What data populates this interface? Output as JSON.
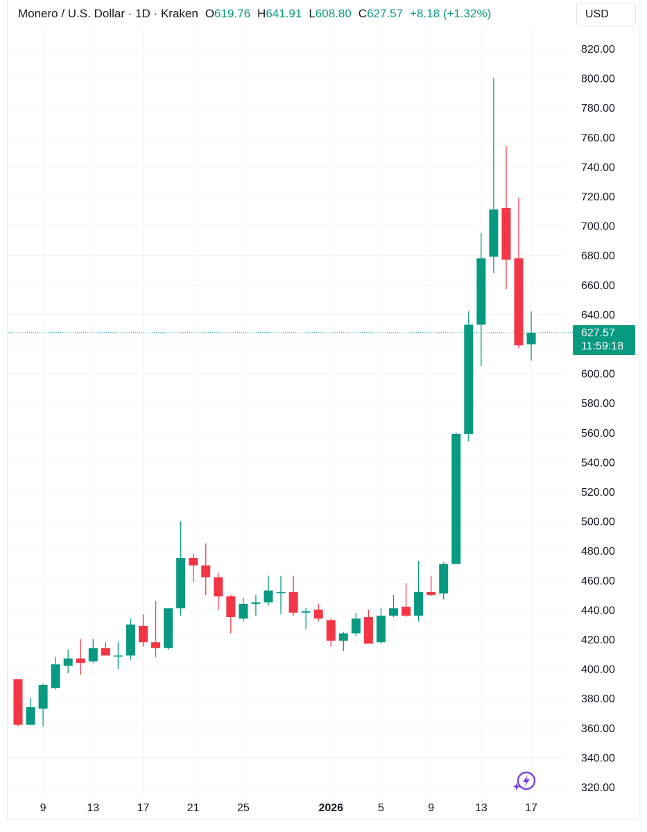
{
  "header": {
    "symbol": "Monero / U.S. Dollar · 1D · Kraken",
    "open_label": "O",
    "open_value": "619.76",
    "high_label": "H",
    "high_value": "641.91",
    "low_label": "L",
    "low_value": "608.80",
    "close_label": "C",
    "close_value": "627.57",
    "change": "+8.18 (+1.32%)"
  },
  "currency_button": "USD",
  "price_tag": {
    "price": "627.57",
    "countdown": "11:59:18"
  },
  "colors": {
    "up": "#089981",
    "down": "#F23645",
    "grid": "#F0F3FA",
    "accent": "#7B3FE4"
  },
  "icons": {
    "lightning": "lightning-sparkle-icon"
  },
  "chart_data": {
    "type": "candlestick",
    "y_ticks": [
      "820.00",
      "800.00",
      "780.00",
      "760.00",
      "740.00",
      "720.00",
      "700.00",
      "680.00",
      "660.00",
      "640.00",
      "620.00",
      "600.00",
      "580.00",
      "560.00",
      "540.00",
      "520.00",
      "500.00",
      "480.00",
      "460.00",
      "440.00",
      "420.00",
      "400.00",
      "380.00",
      "360.00",
      "340.00",
      "320.00"
    ],
    "ylim": [
      320,
      820
    ],
    "x_ticks": [
      {
        "label": "9",
        "index": 2
      },
      {
        "label": "13",
        "index": 6
      },
      {
        "label": "17",
        "index": 10
      },
      {
        "label": "21",
        "index": 14
      },
      {
        "label": "25",
        "index": 18
      },
      {
        "label": "2026",
        "index": 25
      },
      {
        "label": "5",
        "index": 29
      },
      {
        "label": "9",
        "index": 33
      },
      {
        "label": "13",
        "index": 37
      },
      {
        "label": "17",
        "index": 41
      }
    ],
    "candles": [
      {
        "o": 393,
        "h": 393,
        "l": 361,
        "c": 362
      },
      {
        "o": 362,
        "h": 380,
        "l": 362,
        "c": 374
      },
      {
        "o": 373,
        "h": 390,
        "l": 361,
        "c": 389
      },
      {
        "o": 387,
        "h": 408,
        "l": 386,
        "c": 403
      },
      {
        "o": 402,
        "h": 413,
        "l": 397,
        "c": 407
      },
      {
        "o": 407,
        "h": 420,
        "l": 396,
        "c": 404
      },
      {
        "o": 405,
        "h": 420,
        "l": 404,
        "c": 414
      },
      {
        "o": 414,
        "h": 418,
        "l": 409,
        "c": 409
      },
      {
        "o": 409,
        "h": 418,
        "l": 400,
        "c": 409
      },
      {
        "o": 409,
        "h": 434,
        "l": 406,
        "c": 430
      },
      {
        "o": 429,
        "h": 437,
        "l": 415,
        "c": 418
      },
      {
        "o": 418,
        "h": 446,
        "l": 408,
        "c": 414
      },
      {
        "o": 414,
        "h": 441,
        "l": 413,
        "c": 441
      },
      {
        "o": 441,
        "h": 500,
        "l": 436,
        "c": 475
      },
      {
        "o": 475,
        "h": 478,
        "l": 459,
        "c": 470
      },
      {
        "o": 470,
        "h": 485,
        "l": 450,
        "c": 462
      },
      {
        "o": 462,
        "h": 465,
        "l": 440,
        "c": 449
      },
      {
        "o": 449,
        "h": 450,
        "l": 424,
        "c": 435
      },
      {
        "o": 434,
        "h": 448,
        "l": 432,
        "c": 444
      },
      {
        "o": 444,
        "h": 450,
        "l": 436,
        "c": 445
      },
      {
        "o": 445,
        "h": 463,
        "l": 443,
        "c": 453
      },
      {
        "o": 452,
        "h": 463,
        "l": 437,
        "c": 452
      },
      {
        "o": 452,
        "h": 463,
        "l": 436,
        "c": 438
      },
      {
        "o": 438,
        "h": 441,
        "l": 427,
        "c": 439
      },
      {
        "o": 440,
        "h": 444,
        "l": 432,
        "c": 434
      },
      {
        "o": 433,
        "h": 434,
        "l": 415,
        "c": 419
      },
      {
        "o": 419,
        "h": 425,
        "l": 412,
        "c": 424
      },
      {
        "o": 424,
        "h": 438,
        "l": 422,
        "c": 434
      },
      {
        "o": 435,
        "h": 440,
        "l": 417,
        "c": 417
      },
      {
        "o": 418,
        "h": 441,
        "l": 417,
        "c": 436
      },
      {
        "o": 436,
        "h": 450,
        "l": 435,
        "c": 441
      },
      {
        "o": 442,
        "h": 458,
        "l": 435,
        "c": 436
      },
      {
        "o": 436,
        "h": 473,
        "l": 432,
        "c": 452
      },
      {
        "o": 452,
        "h": 463,
        "l": 449,
        "c": 450
      },
      {
        "o": 451,
        "h": 472,
        "l": 447,
        "c": 471
      },
      {
        "o": 471,
        "h": 560,
        "l": 471,
        "c": 559
      },
      {
        "o": 559,
        "h": 642,
        "l": 554,
        "c": 633
      },
      {
        "o": 633,
        "h": 695,
        "l": 605,
        "c": 678
      },
      {
        "o": 679,
        "h": 800,
        "l": 668,
        "c": 711
      },
      {
        "o": 712,
        "h": 754,
        "l": 657,
        "c": 677
      },
      {
        "o": 678,
        "h": 719,
        "l": 617,
        "c": 619
      },
      {
        "o": 619.76,
        "h": 641.91,
        "l": 608.8,
        "c": 627.57
      }
    ],
    "last_price": 627.57,
    "grid": true
  }
}
